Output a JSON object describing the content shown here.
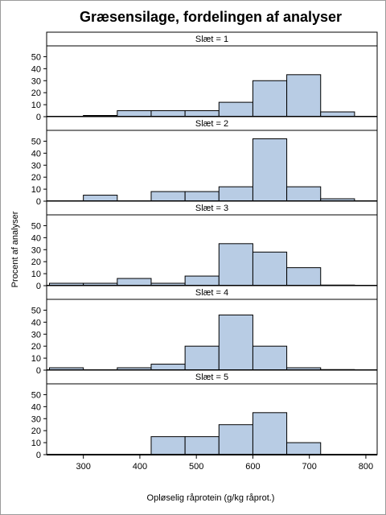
{
  "chart_data": {
    "type": "bar",
    "title": "Græsensilage, fordelingen af analyser",
    "xlabel": "Opløselig råprotein (g/kg råprot.)",
    "ylabel": "Procent af analyser",
    "xlim": [
      235,
      820
    ],
    "x_ticks": [
      "300",
      "400",
      "500",
      "600",
      "700",
      "800"
    ],
    "ylim": [
      0,
      55
    ],
    "y_ticks": [
      "0",
      "10",
      "20",
      "30",
      "40",
      "50"
    ],
    "bin_edges": [
      240,
      300,
      360,
      420,
      480,
      540,
      600,
      660,
      720,
      780
    ],
    "fill_color": "#b8cce4",
    "edge_color": "#000000",
    "panels": [
      {
        "label": "Slæt = 1",
        "values": [
          0,
          1,
          5,
          5,
          5,
          12,
          30,
          35,
          4
        ]
      },
      {
        "label": "Slæt = 2",
        "values": [
          0,
          5,
          0,
          8,
          8,
          12,
          52,
          12,
          2
        ]
      },
      {
        "label": "Slæt = 3",
        "values": [
          2,
          2,
          6,
          2,
          8,
          35,
          28,
          15,
          0.5
        ]
      },
      {
        "label": "Slæt = 4",
        "values": [
          2,
          0,
          2,
          5,
          20,
          46,
          20,
          2,
          0.5
        ]
      },
      {
        "label": "Slæt = 5",
        "values": [
          0,
          0,
          0,
          15,
          15,
          25,
          35,
          10,
          0
        ]
      }
    ]
  }
}
